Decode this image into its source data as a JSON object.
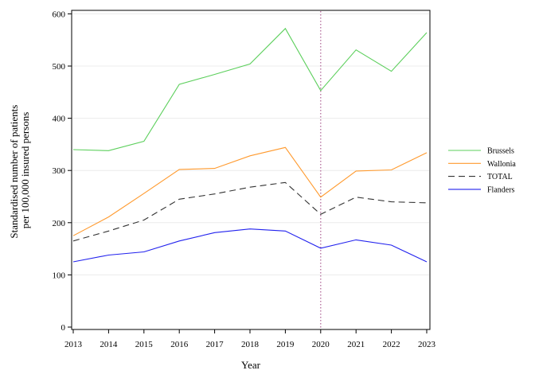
{
  "chart_data": {
    "type": "line",
    "title": "",
    "xlabel": "Year",
    "ylabel_lines": [
      "Standardised number of patients",
      "per 100,000 insured persons"
    ],
    "x": [
      2013,
      2014,
      2015,
      2016,
      2017,
      2018,
      2019,
      2020,
      2021,
      2022,
      2023
    ],
    "xlim": [
      2013,
      2023
    ],
    "ylim": [
      0,
      605
    ],
    "yticks": [
      0,
      100,
      200,
      300,
      400,
      500,
      600
    ],
    "grid": "horizontal",
    "legend_position": "right",
    "reference_line": {
      "x": 2020,
      "style": "dotted",
      "color": "#b36b9b"
    },
    "series": [
      {
        "name": "Brussels",
        "color": "#5ccf5c",
        "dash": "solid",
        "values": [
          340,
          338,
          356,
          465,
          484,
          504,
          572,
          453,
          531,
          490,
          564
        ]
      },
      {
        "name": "Wallonia",
        "color": "#ff9a2e",
        "dash": "solid",
        "values": [
          175,
          211,
          256,
          302,
          304,
          328,
          344,
          249,
          299,
          301,
          334
        ]
      },
      {
        "name": "TOTAL",
        "color": "#333333",
        "dash": "dashed",
        "values": [
          165,
          184,
          205,
          245,
          255,
          268,
          277,
          216,
          249,
          240,
          238
        ]
      },
      {
        "name": "Flanders",
        "color": "#2222ee",
        "dash": "solid",
        "values": [
          125,
          138,
          144,
          165,
          181,
          188,
          184,
          151,
          167,
          157,
          125
        ]
      }
    ]
  }
}
